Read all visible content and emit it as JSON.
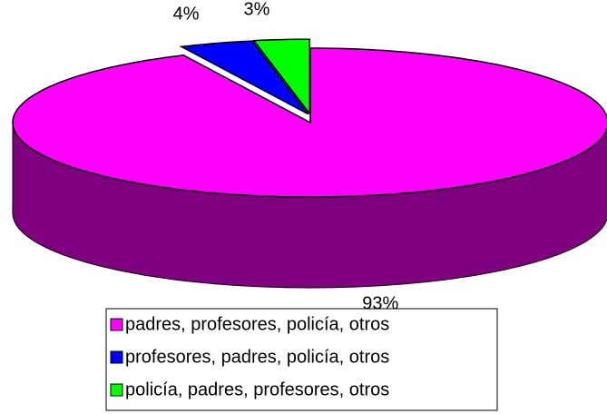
{
  "chart_data": {
    "type": "pie",
    "categories": [
      "padres, profesores, policía, otros",
      "profesores, padres, policía, otros",
      "policía, padres, profesores, otros"
    ],
    "values": [
      93,
      4,
      3
    ],
    "value_labels": [
      "93%",
      "4%",
      "3%"
    ],
    "colors": [
      "#ff00ff",
      "#0000ff",
      "#00ff00"
    ],
    "legend": "bottom"
  }
}
